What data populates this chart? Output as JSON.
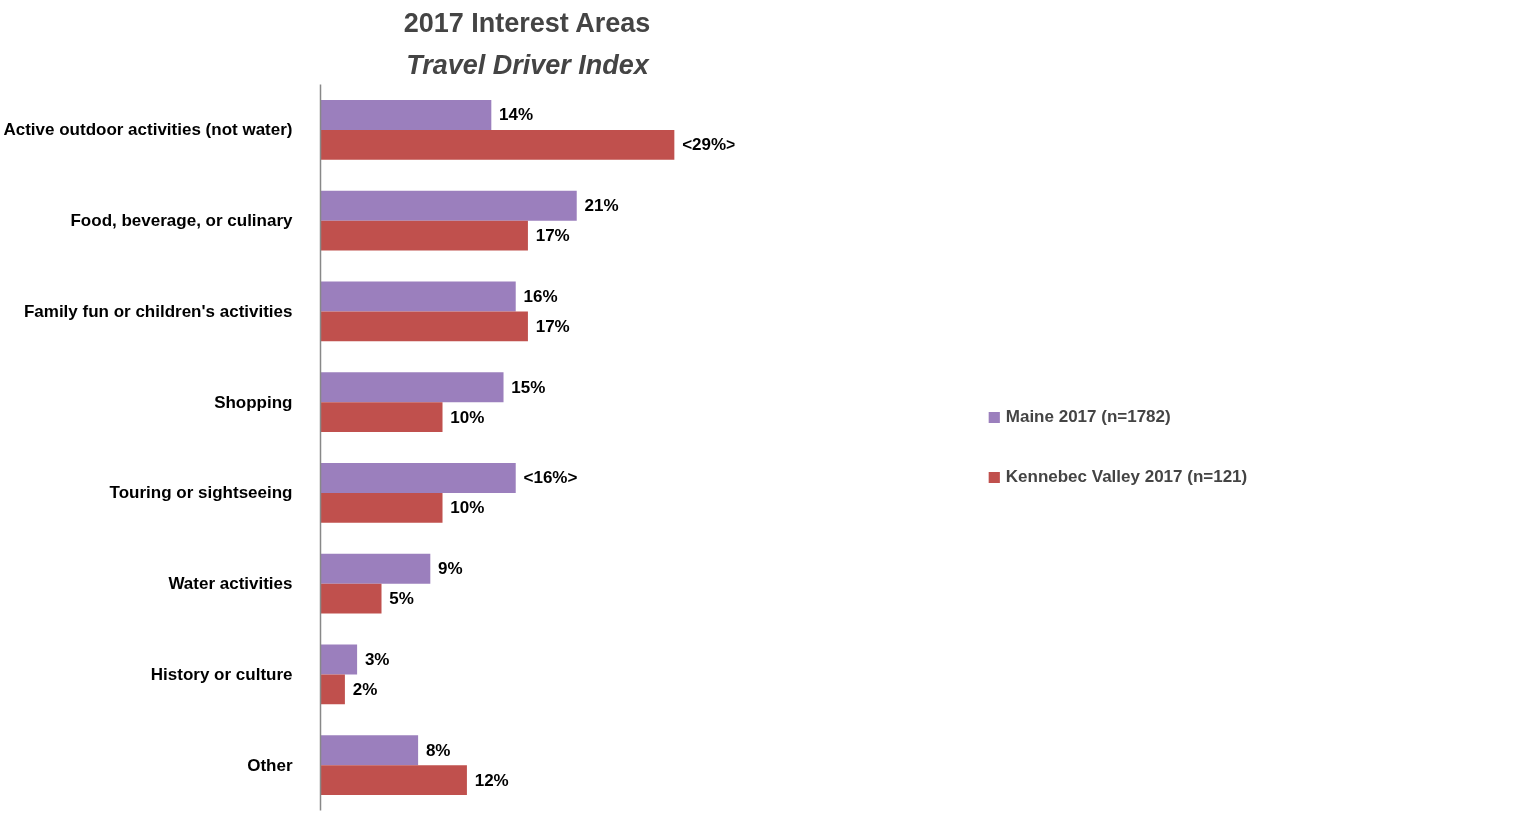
{
  "chart_data": {
    "type": "bar",
    "orientation": "horizontal",
    "title": "2017 Interest Areas",
    "subtitle": "Travel Driver Index",
    "categories": [
      "Active outdoor activities (not water)",
      "Food, beverage, or culinary",
      "Family fun or children's activities",
      "Shopping",
      "Touring or sightseeing",
      "Water activities",
      "History or culture",
      "Other"
    ],
    "series": [
      {
        "name": "Maine 2017 (n=1782)",
        "color": "#9b7fbd",
        "values": [
          14,
          21,
          16,
          15,
          16,
          9,
          3,
          8
        ],
        "value_labels": [
          "14%",
          "21%",
          "16%",
          "15%",
          "<16%>",
          "9%",
          "3%",
          "8%"
        ]
      },
      {
        "name": "Kennebec Valley 2017 (n=121)",
        "color": "#c0504d",
        "values": [
          29,
          17,
          17,
          10,
          10,
          5,
          2,
          12
        ],
        "value_labels": [
          "<29%>",
          "17%",
          "17%",
          "10%",
          "10%",
          "5%",
          "2%",
          "12%"
        ]
      }
    ],
    "legend": "right",
    "grid": false,
    "tick_labels": "y"
  }
}
